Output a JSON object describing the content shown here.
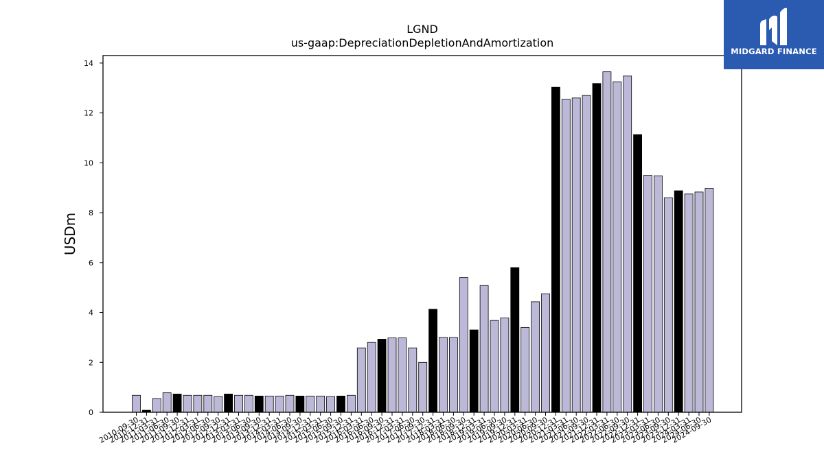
{
  "brand": {
    "name": "MIDGARD FINANCE",
    "bg_color": "#2b5bb0",
    "mark_icon": "midgard-logo-icon"
  },
  "colors": {
    "bar_default": "#bcb8d8",
    "bar_highlight": "#000000",
    "bar_edge": "#000000"
  },
  "chart_data": {
    "type": "bar",
    "title": "LGND",
    "subtitle": "us-gaap:DepreciationDepletionAndAmortization",
    "xlabel": "",
    "ylabel": "USDm",
    "ylim": [
      0,
      14.3
    ],
    "yticks": [
      0,
      2,
      4,
      6,
      8,
      10,
      12,
      14
    ],
    "grid": false,
    "legend": "none",
    "categories": [
      "2010-09-30",
      "2010-12-31",
      "2011-03-31",
      "2011-06-30",
      "2011-09-30",
      "2011-12-31",
      "2012-03-31",
      "2012-06-30",
      "2012-09-30",
      "2012-12-31",
      "2013-03-31",
      "2013-06-30",
      "2013-09-30",
      "2013-12-31",
      "2014-03-31",
      "2014-06-30",
      "2014-09-30",
      "2014-12-31",
      "2015-03-31",
      "2015-06-30",
      "2015-09-30",
      "2015-12-31",
      "2016-03-31",
      "2016-06-30",
      "2016-09-30",
      "2016-12-31",
      "2017-03-31",
      "2017-06-30",
      "2017-09-30",
      "2017-12-31",
      "2018-03-31",
      "2018-06-30",
      "2018-09-30",
      "2018-12-31",
      "2019-03-31",
      "2019-06-30",
      "2019-09-30",
      "2019-12-31",
      "2020-03-31",
      "2020-06-30",
      "2020-09-30",
      "2020-12-31",
      "2021-03-31",
      "2021-06-30",
      "2021-09-30",
      "2021-12-31",
      "2022-03-31",
      "2022-06-30",
      "2022-09-30",
      "2022-12-31",
      "2023-03-31",
      "2023-06-30",
      "2023-09-30",
      "2023-12-31",
      "2024-03-31",
      "2024-06-30",
      "2024-09-30"
    ],
    "values": [
      0.68,
      0.08,
      0.55,
      0.78,
      0.73,
      0.68,
      0.68,
      0.68,
      0.63,
      0.73,
      0.68,
      0.68,
      0.65,
      0.65,
      0.65,
      0.68,
      0.65,
      0.65,
      0.65,
      0.63,
      0.65,
      0.68,
      2.58,
      2.8,
      2.93,
      2.98,
      2.98,
      2.58,
      2.0,
      4.13,
      3.0,
      3.0,
      5.4,
      3.3,
      5.08,
      3.68,
      3.78,
      5.8,
      3.4,
      4.43,
      4.75,
      13.03,
      12.55,
      12.6,
      12.7,
      13.18,
      13.65,
      13.25,
      13.48,
      11.13,
      9.5,
      9.48,
      8.6,
      8.88,
      8.75,
      8.83,
      8.98
    ],
    "highlighted": [
      1,
      4,
      9,
      12,
      16,
      20,
      24,
      29,
      33,
      37,
      41,
      45,
      49,
      53
    ]
  }
}
